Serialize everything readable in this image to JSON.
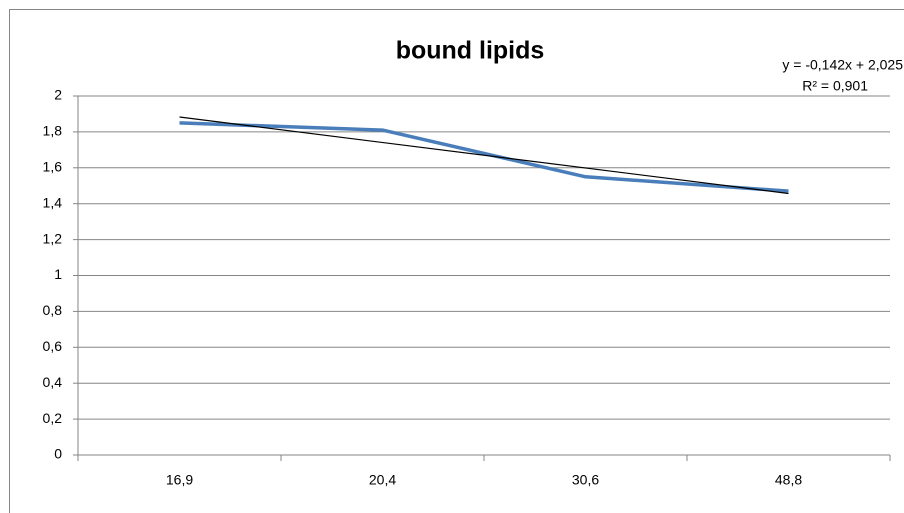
{
  "chart_data": {
    "type": "line",
    "title": "bound lipids",
    "categories": [
      "16,9",
      "20,4",
      "30,6",
      "48,8"
    ],
    "series": [
      {
        "name": "bound lipids",
        "color": "#4a7ebb",
        "values": [
          1.85,
          1.81,
          1.55,
          1.47
        ]
      }
    ],
    "ylim": [
      0,
      2
    ],
    "yticks": [
      0,
      {
        "value": 0.2,
        "label": "0,2"
      },
      {
        "value": 0.4,
        "label": "0,4"
      },
      {
        "value": 0.6,
        "label": "0,6"
      },
      {
        "value": 0.8,
        "label": "0,8"
      },
      1,
      {
        "value": 1.2,
        "label": "1,2"
      },
      {
        "value": 1.4,
        "label": "1,4"
      },
      {
        "value": 1.6,
        "label": "1,6"
      },
      {
        "value": 1.8,
        "label": "1,8"
      },
      2
    ],
    "grid": true,
    "trendline": {
      "slope": -0.142,
      "intercept": 2.025,
      "color": "#000000",
      "equation_label": "y = -0,142x + 2,025",
      "r2_label": "R² = 0,901"
    }
  }
}
